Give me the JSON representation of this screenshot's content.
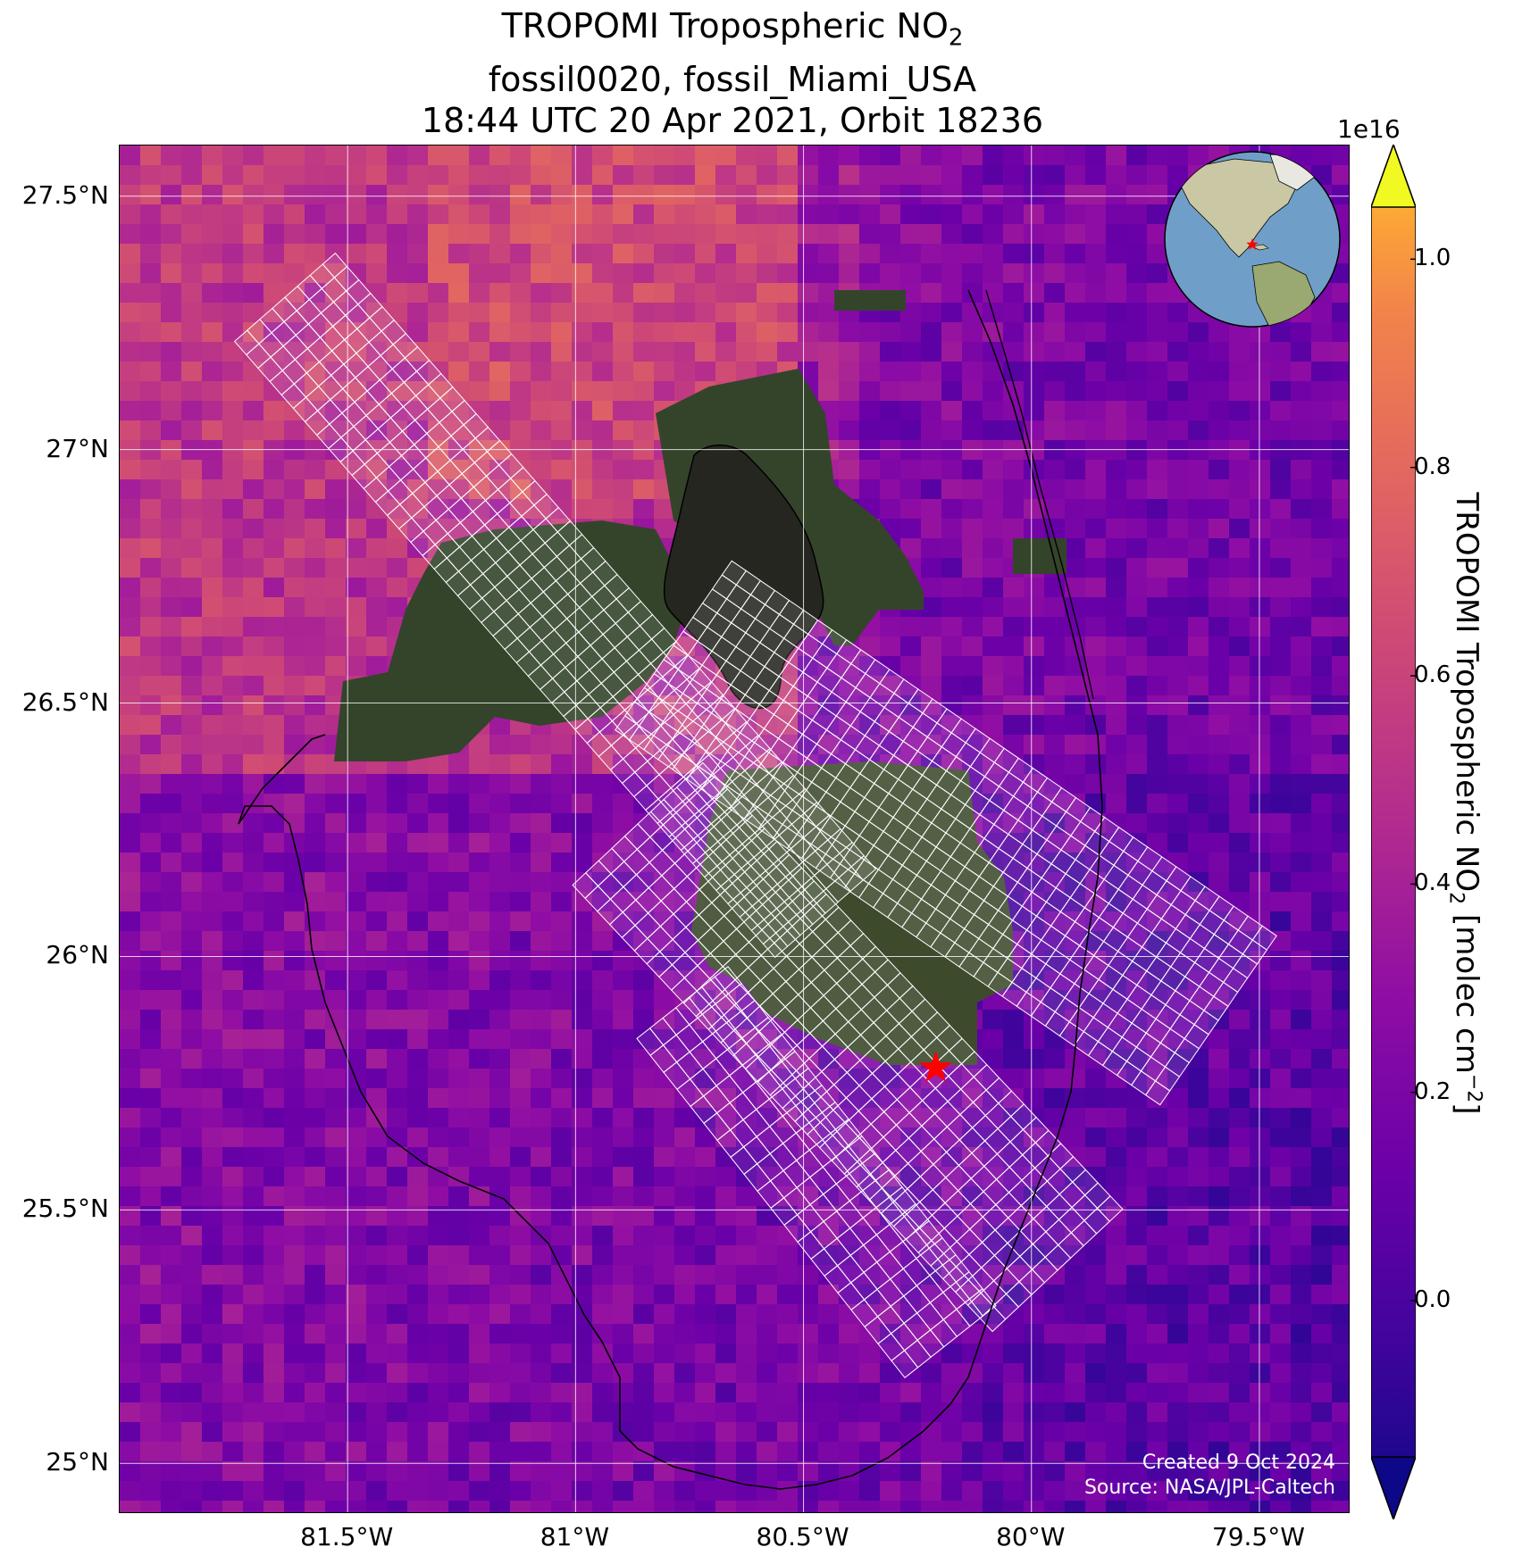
{
  "title": {
    "line1_prefix": "TROPOMI Tropospheric NO",
    "line1_sub": "2",
    "line2": "fossil0020, fossil_Miami_USA",
    "line3": "18:44 UTC 20 Apr 2021, Orbit 18236"
  },
  "axes": {
    "lat_ticks": [
      "27.5°N",
      "27°N",
      "26.5°N",
      "26°N",
      "25.5°N",
      "25°N"
    ],
    "lon_ticks": [
      "81.5°W",
      "81°W",
      "80.5°W",
      "80°W",
      "79.5°W"
    ],
    "lat_values": [
      27.5,
      27.0,
      26.5,
      26.0,
      25.5,
      25.0
    ],
    "lon_values": [
      -81.5,
      -81.0,
      -80.5,
      -80.0,
      -79.5
    ],
    "lat_range": [
      24.9,
      27.6
    ],
    "lon_range": [
      -82.0,
      -79.3
    ]
  },
  "colorbar": {
    "exponent": "1e16",
    "ticks": [
      "1.0",
      "0.8",
      "0.6",
      "0.4",
      "0.2",
      "0.0"
    ],
    "tick_values": [
      1.0,
      0.8,
      0.6,
      0.4,
      0.2,
      0.0
    ],
    "range": [
      -0.15,
      1.05
    ],
    "label_prefix": "TROPOMI Tropospheric NO",
    "label_sub": "2",
    "label_mid": " [molec cm",
    "label_sup": "−2",
    "label_suffix": "]",
    "colormap": "plasma"
  },
  "credit": {
    "line1": "Created 9 Oct 2024",
    "line2": "Source: NASA/JPL-Caltech"
  },
  "site": {
    "lon": -80.21,
    "lat": 25.78,
    "marker_color": "#ff0000"
  },
  "colors": {
    "coastline": "#000000",
    "gridline": "#ffffff",
    "footprint": "#ffffff",
    "land": "#3a4a2a",
    "lake": "#2a2a22"
  }
}
